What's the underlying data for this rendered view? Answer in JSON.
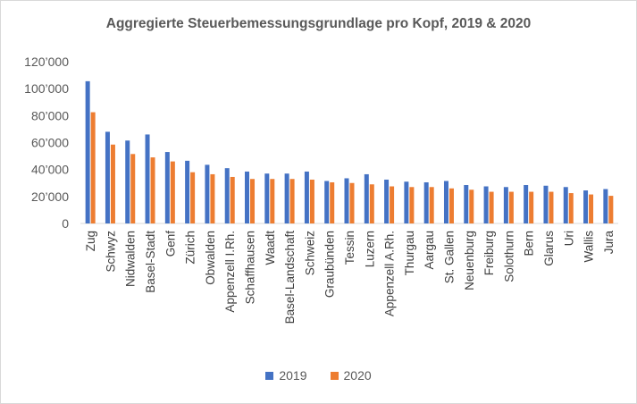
{
  "chart_data": {
    "type": "bar",
    "title": "Aggregierte Steuerbemessungsgrundlage pro Kopf, 2019 & 2020",
    "xlabel": "",
    "ylabel": "",
    "ylim": [
      0,
      120000
    ],
    "yticks": [
      "0",
      "20’000",
      "40’000",
      "60’000",
      "80’000",
      "100’000",
      "120’000"
    ],
    "grid": false,
    "legend_position": "bottom",
    "categories": [
      "Zug",
      "Schwyz",
      "Nidwalden",
      "Basel-Stadt",
      "Genf",
      "Zürich",
      "Obwalden",
      "Appenzell I.Rh.",
      "Schaffhausen",
      "Waadt",
      "Basel-Landschaft",
      "Schweiz",
      "Graubünden",
      "Tessin",
      "Luzern",
      "Appenzell A.Rh.",
      "Thurgau",
      "Aargau",
      "St. Gallen",
      "Neuenburg",
      "Freiburg",
      "Solothurn",
      "Bern",
      "Glarus",
      "Uri",
      "Wallis",
      "Jura"
    ],
    "series": [
      {
        "name": "2019",
        "color": "#4472c4",
        "values": [
          105500,
          68000,
          61500,
          66000,
          53000,
          46500,
          43500,
          41000,
          38500,
          37000,
          37000,
          38500,
          31500,
          33500,
          36500,
          32500,
          31000,
          30500,
          31500,
          28500,
          27500,
          27000,
          28500,
          28000,
          27000,
          24500,
          25500
        ]
      },
      {
        "name": "2020",
        "color": "#ed7d31",
        "values": [
          82500,
          58500,
          51500,
          49000,
          46000,
          38000,
          36500,
          34500,
          33000,
          33000,
          33000,
          32500,
          30500,
          30000,
          29000,
          27500,
          27000,
          27000,
          26000,
          25000,
          23500,
          23500,
          23500,
          23500,
          22500,
          21500,
          20500
        ]
      }
    ]
  }
}
